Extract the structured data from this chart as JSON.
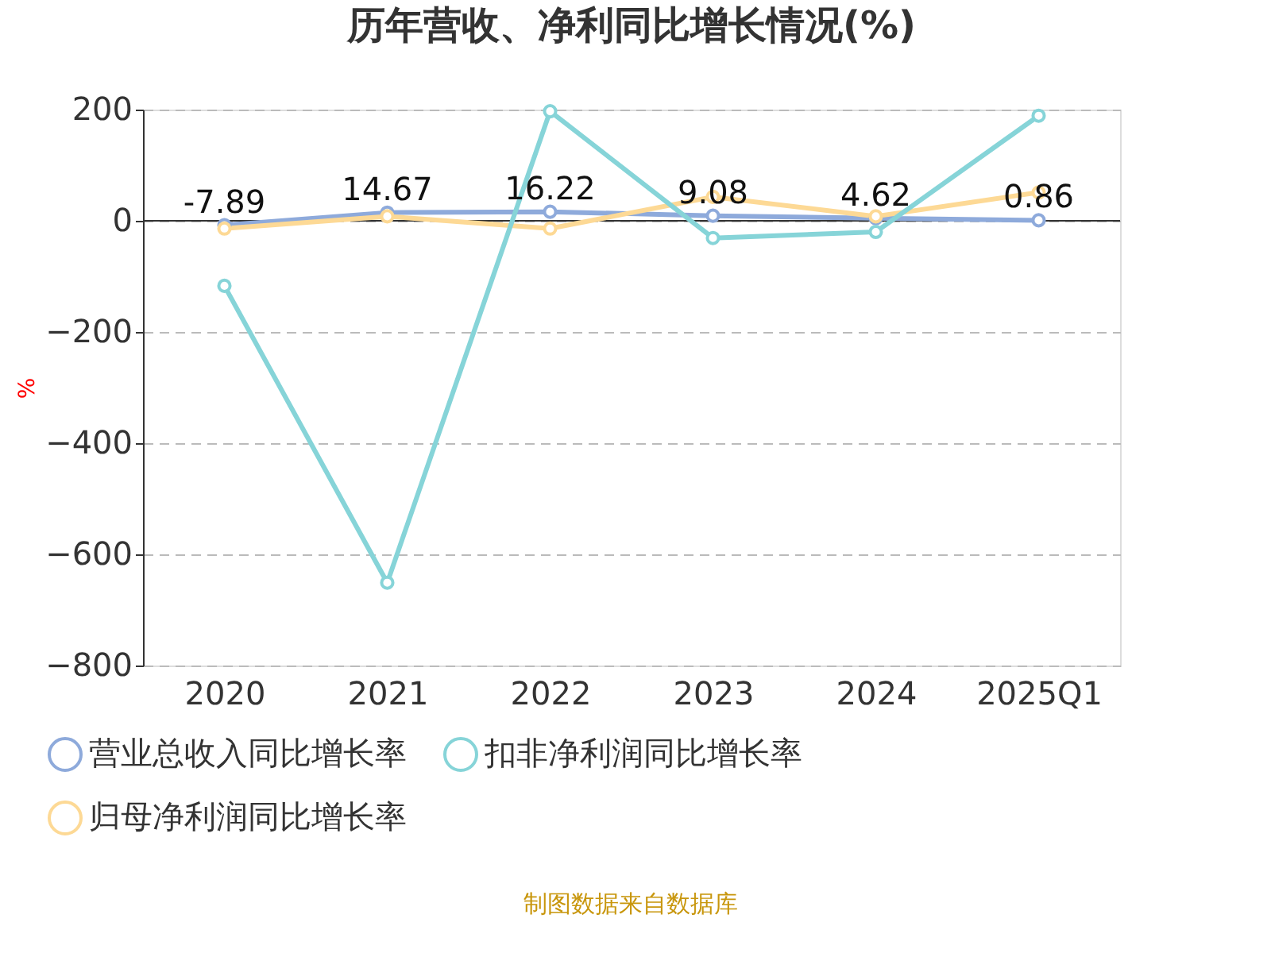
{
  "chart_data": {
    "type": "line",
    "title": "历年营收、净利同比增长情况(%)",
    "ylabel": "%",
    "categories": [
      "2020",
      "2021",
      "2022",
      "2023",
      "2024",
      "2025Q1"
    ],
    "series": [
      {
        "name": "营业总收入同比增长率",
        "color": "#8eaadb",
        "values": [
          -7.89,
          14.67,
          16.22,
          9.08,
          4.62,
          0.86
        ],
        "value_labels": [
          "-7.89",
          "14.67",
          "16.22",
          "9.08",
          "4.62",
          "0.86"
        ]
      },
      {
        "name": "归母净利润同比增长率",
        "color": "#fdd995",
        "values": [
          -14,
          8,
          -14,
          43,
          8,
          51
        ]
      },
      {
        "name": "扣非净利润同比增长率",
        "color": "#86d4d8",
        "values": [
          -117,
          -651,
          197,
          -31,
          -20,
          189
        ]
      }
    ],
    "ylim": [
      -800,
      200
    ],
    "yticks": [
      -800,
      -600,
      -400,
      -200,
      0,
      200
    ],
    "grid": "y",
    "legend": "bottom",
    "marker": "circle",
    "line_style": "solid",
    "annotations": [
      "制图数据来自数据库"
    ]
  }
}
